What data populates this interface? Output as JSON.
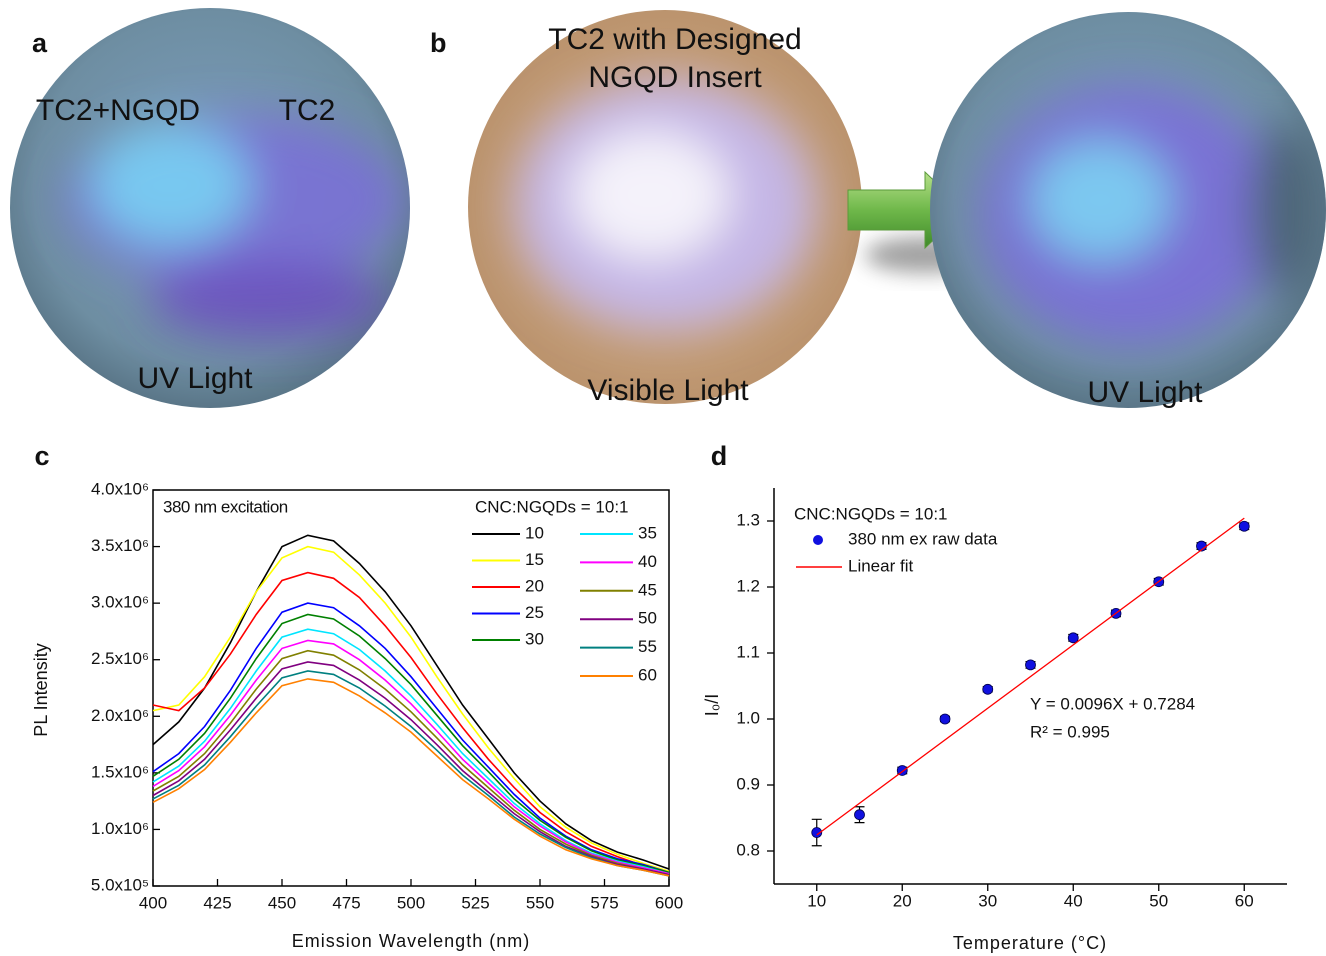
{
  "panels": {
    "a": {
      "label": "a",
      "left_label": "TC2+NGQD",
      "right_label": "TC2",
      "caption": "UV Light"
    },
    "b": {
      "label": "b",
      "title": [
        "TC2 with Designed",
        "NGQD Insert"
      ],
      "left_caption": "Visible Light",
      "right_caption": "UV Light"
    }
  },
  "chart_data": [
    {
      "type": "line",
      "label": "c",
      "annotation": "380 nm excitation",
      "legend_title": "CNC:NGQDs = 10:1",
      "xlabel": "Emission Wavelength (nm)",
      "ylabel": "PL Intensity",
      "x": [
        400,
        410,
        420,
        430,
        440,
        450,
        460,
        470,
        480,
        490,
        500,
        510,
        520,
        530,
        540,
        550,
        560,
        570,
        580,
        590,
        600
      ],
      "xlim": [
        400,
        600
      ],
      "xticks": [
        400,
        425,
        450,
        475,
        500,
        525,
        550,
        575,
        600
      ],
      "ylim": [
        500000.0,
        4000000.0
      ],
      "yticks": [
        {
          "value": 500000.0,
          "label": "5.0x10⁵"
        },
        {
          "value": 1000000.0,
          "label": "1.0x10⁶"
        },
        {
          "value": 1500000.0,
          "label": "1.5x10⁶"
        },
        {
          "value": 2000000.0,
          "label": "2.0x10⁶"
        },
        {
          "value": 2500000.0,
          "label": "2.5x10⁶"
        },
        {
          "value": 3000000.0,
          "label": "3.0x10⁶"
        },
        {
          "value": 3500000.0,
          "label": "3.5x10⁶"
        },
        {
          "value": 4000000.0,
          "label": "4.0x10⁶"
        }
      ],
      "series": [
        {
          "name": "10",
          "color": "#000000",
          "values": [
            1750000.0,
            1950000.0,
            2250000.0,
            2650000.0,
            3100000.0,
            3500000.0,
            3600000.0,
            3550000.0,
            3350000.0,
            3100000.0,
            2800000.0,
            2450000.0,
            2100000.0,
            1800000.0,
            1500000.0,
            1250000.0,
            1050000.0,
            900000.0,
            800000.0,
            730000.0,
            650000.0
          ]
        },
        {
          "name": "15",
          "color": "#ffff00",
          "values": [
            2050000.0,
            2100000.0,
            2350000.0,
            2700000.0,
            3100000.0,
            3400000.0,
            3500000.0,
            3450000.0,
            3250000.0,
            3000000.0,
            2700000.0,
            2350000.0,
            2020000.0,
            1720000.0,
            1450000.0,
            1200000.0,
            1020000.0,
            880000.0,
            780000.0,
            700000.0,
            630000.0
          ]
        },
        {
          "name": "20",
          "color": "#ff0000",
          "values": [
            2100000.0,
            2050000.0,
            2250000.0,
            2550000.0,
            2900000.0,
            3200000.0,
            3270000.0,
            3220000.0,
            3050000.0,
            2800000.0,
            2520000.0,
            2200000.0,
            1900000.0,
            1620000.0,
            1370000.0,
            1150000.0,
            980000.0,
            850000.0,
            760000.0,
            680000.0,
            610000.0
          ]
        },
        {
          "name": "25",
          "color": "#0000ff",
          "values": [
            1510000.0,
            1670000.0,
            1910000.0,
            2230000.0,
            2600000.0,
            2920000.0,
            3000000.0,
            2960000.0,
            2800000.0,
            2600000.0,
            2350000.0,
            2070000.0,
            1790000.0,
            1550000.0,
            1310000.0,
            1100000.0,
            940000.0,
            820000.0,
            740000.0,
            690000.0,
            620000.0
          ]
        },
        {
          "name": "30",
          "color": "#008000",
          "values": [
            1470000.0,
            1620000.0,
            1850000.0,
            2160000.0,
            2510000.0,
            2820000.0,
            2900000.0,
            2860000.0,
            2710000.0,
            2510000.0,
            2280000.0,
            2010000.0,
            1740000.0,
            1510000.0,
            1270000.0,
            1080000.0,
            930000.0,
            810000.0,
            730000.0,
            680000.0,
            620000.0
          ]
        },
        {
          "name": "35",
          "color": "#00e5ff",
          "values": [
            1420000.0,
            1560000.0,
            1780000.0,
            2070000.0,
            2400000.0,
            2700000.0,
            2770000.0,
            2730000.0,
            2590000.0,
            2400000.0,
            2180000.0,
            1930000.0,
            1670000.0,
            1450000.0,
            1230000.0,
            1050000.0,
            900000.0,
            790000.0,
            720000.0,
            670000.0,
            610000.0
          ]
        },
        {
          "name": "40",
          "color": "#ff00ff",
          "values": [
            1380000.0,
            1520000.0,
            1730000.0,
            2010000.0,
            2320000.0,
            2600000.0,
            2670000.0,
            2640000.0,
            2500000.0,
            2320000.0,
            2110000.0,
            1870000.0,
            1620000.0,
            1410000.0,
            1200000.0,
            1030000.0,
            890000.0,
            780000.0,
            710000.0,
            660000.0,
            610000.0
          ]
        },
        {
          "name": "45",
          "color": "#808000",
          "values": [
            1340000.0,
            1470000.0,
            1670000.0,
            1940000.0,
            2240000.0,
            2510000.0,
            2580000.0,
            2540000.0,
            2410000.0,
            2240000.0,
            2040000.0,
            1810000.0,
            1570000.0,
            1370000.0,
            1170000.0,
            1000000.0,
            870000.0,
            770000.0,
            700000.0,
            650000.0,
            600000.0
          ]
        },
        {
          "name": "50",
          "color": "#800080",
          "values": [
            1300000.0,
            1430000.0,
            1620000.0,
            1880000.0,
            2160000.0,
            2420000.0,
            2480000.0,
            2450000.0,
            2320000.0,
            2160000.0,
            1970000.0,
            1750000.0,
            1520000.0,
            1330000.0,
            1140000.0,
            980000.0,
            850000.0,
            760000.0,
            690000.0,
            650000.0,
            600000.0
          ]
        },
        {
          "name": "55",
          "color": "#008080",
          "values": [
            1270000.0,
            1390000.0,
            1570000.0,
            1820000.0,
            2090000.0,
            2340000.0,
            2400000.0,
            2370000.0,
            2250000.0,
            2090000.0,
            1910000.0,
            1700000.0,
            1480000.0,
            1300000.0,
            1110000.0,
            960000.0,
            840000.0,
            750000.0,
            680000.0,
            640000.0,
            590000.0
          ]
        },
        {
          "name": "60",
          "color": "#ff8000",
          "values": [
            1240000.0,
            1360000.0,
            1530000.0,
            1770000.0,
            2030000.0,
            2270000.0,
            2330000.0,
            2300000.0,
            2180000.0,
            2030000.0,
            1860000.0,
            1650000.0,
            1440000.0,
            1270000.0,
            1090000.0,
            940000.0,
            820000.0,
            740000.0,
            680000.0,
            640000.0,
            590000.0
          ]
        }
      ]
    },
    {
      "type": "scatter",
      "label": "d",
      "legend_title": "CNC:NGQDs = 10:1",
      "xlabel": "Temperature (°C)",
      "ylabel": "I₀/I",
      "xlim": [
        5,
        65
      ],
      "xticks": [
        10,
        20,
        30,
        40,
        50,
        60
      ],
      "ylim": [
        0.75,
        1.35
      ],
      "yticks": [
        0.8,
        0.9,
        {
          "value": 1,
          "label": "1.0"
        },
        1.1,
        1.2,
        1.3
      ],
      "annotations": [
        "Y = 0.0096X + 0.7284",
        "R² = 0.995"
      ],
      "series": [
        {
          "name": "380 nm ex raw data",
          "color": "#1010e0",
          "x": [
            10,
            15,
            20,
            25,
            30,
            35,
            40,
            45,
            50,
            55,
            60
          ],
          "values": [
            0.828,
            0.855,
            0.922,
            1.0,
            1.045,
            1.082,
            1.123,
            1.16,
            1.208,
            1.262,
            1.292
          ],
          "errors": [
            0.02,
            0.012,
            0.005,
            0.004,
            0.004,
            0.005,
            0.005,
            0.005,
            0.005,
            0.005,
            0.005
          ]
        },
        {
          "name": "Linear fit",
          "type": "line",
          "color": "#ff0000",
          "x": [
            10,
            60
          ],
          "values": [
            0.8244,
            1.3044
          ]
        }
      ]
    }
  ]
}
